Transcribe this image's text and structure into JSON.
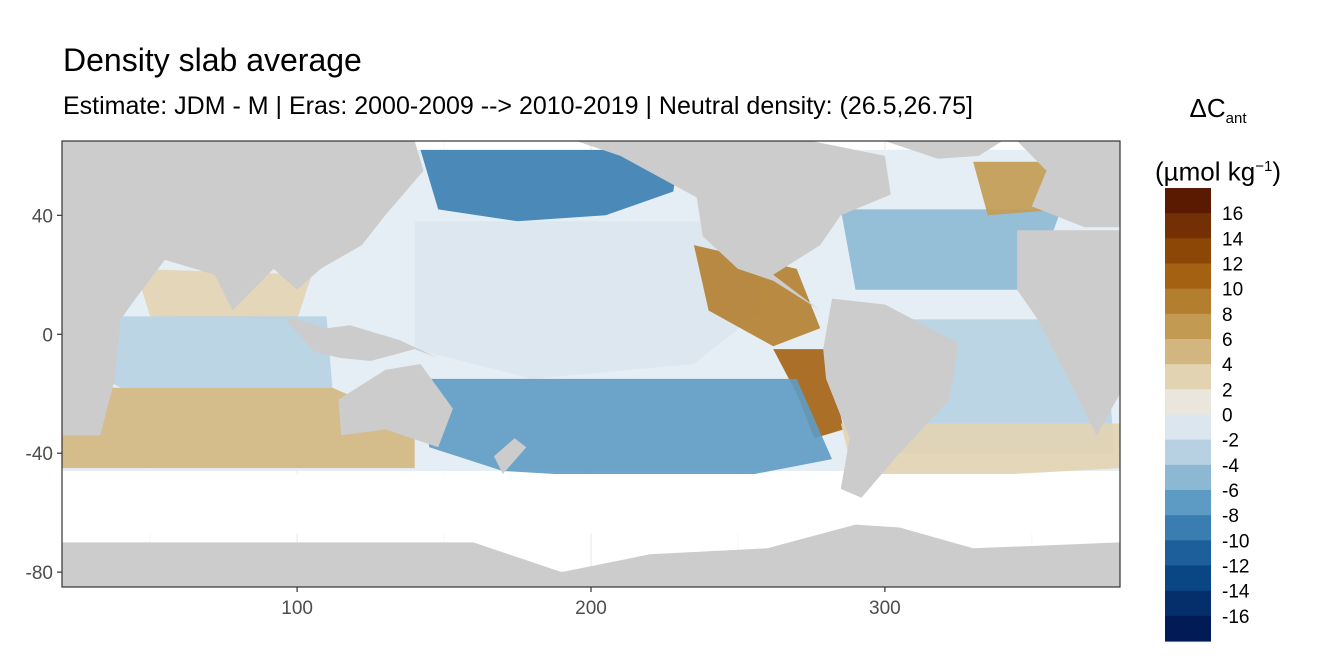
{
  "chart_data": {
    "type": "heatmap",
    "title": "Density slab average",
    "subtitle": "Estimate: JDM - M | Eras: 2000-2009 --> 2010-2019 | Neutral density: (26.5,26.75]",
    "xlabel": "",
    "ylabel": "",
    "xlim": [
      20,
      380
    ],
    "ylim": [
      -85,
      65
    ],
    "x_ticks": [
      100,
      200,
      300
    ],
    "y_ticks": [
      40,
      0,
      -40,
      -80
    ],
    "grid": true,
    "legend": {
      "title_main": "ΔC",
      "title_sub": "ant",
      "unit_main": "(µmol kg",
      "unit_sup": "−1",
      "unit_close": ")",
      "placement": "right",
      "labels": [
        "16",
        "14",
        "12",
        "10",
        "8",
        "6",
        "4",
        "2",
        "0",
        "-2",
        "-4",
        "-6",
        "-8",
        "-10",
        "-12",
        "-14",
        "-16"
      ],
      "colors": [
        "#5a1a02",
        "#733004",
        "#8c4706",
        "#a46111",
        "#b47e2f",
        "#c39a52",
        "#d3b67f",
        "#e2d3b2",
        "#eae5dd",
        "#dbe6ee",
        "#b7d1e3",
        "#8cb8d4",
        "#5e9bc4",
        "#3a7db1",
        "#1d5f9b",
        "#0a4683",
        "#042f6b",
        "#001b55"
      ]
    },
    "land_color": "#cccccc",
    "regions": [
      {
        "name": "north-pacific-subpolar",
        "value": -9
      },
      {
        "name": "tropical-west-pacific",
        "value": -1
      },
      {
        "name": "east-tropical-pacific",
        "value": 9
      },
      {
        "name": "peru-coast",
        "value": 10
      },
      {
        "name": "south-pacific-subtropical",
        "value": -7
      },
      {
        "name": "indian-ocean-north",
        "value": 3
      },
      {
        "name": "indian-ocean-equatorial",
        "value": -4
      },
      {
        "name": "south-indian-band",
        "value": 5
      },
      {
        "name": "north-atlantic-subtropical",
        "value": -6
      },
      {
        "name": "north-atlantic-east",
        "value": 7
      },
      {
        "name": "south-atlantic",
        "value": -3
      },
      {
        "name": "southern-ocean-band",
        "value": 3
      }
    ]
  }
}
